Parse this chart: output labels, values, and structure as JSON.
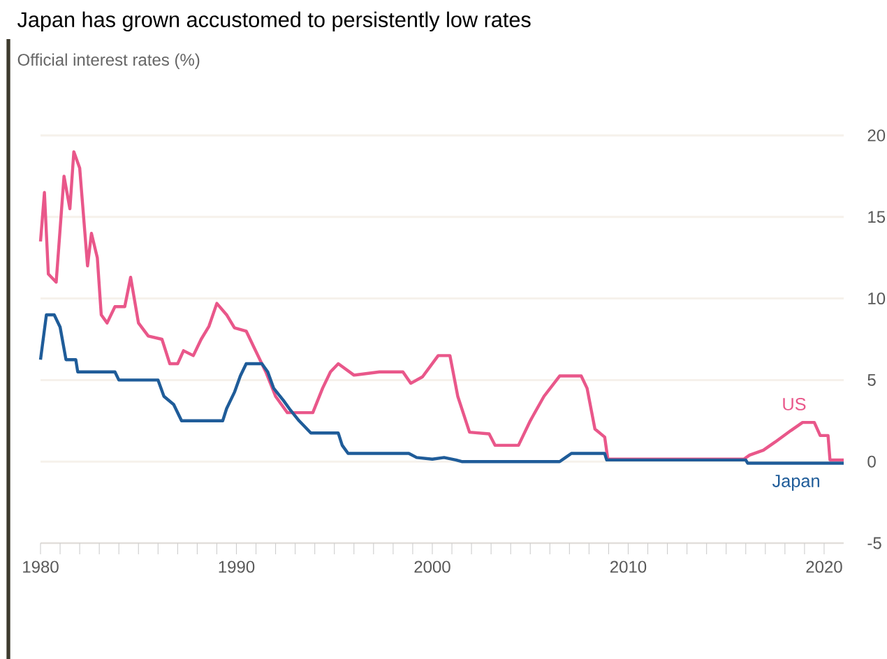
{
  "chart_data": {
    "type": "step",
    "title": "Japan has grown accustomed to persistently low rates",
    "subtitle": "Official interest rates (%)",
    "xlim": [
      1980,
      2021
    ],
    "ylim": [
      -5,
      20
    ],
    "xticks": [
      {
        "value": 1980,
        "label": "1980"
      },
      {
        "value": 1981,
        "label": null
      },
      {
        "value": 1982,
        "label": null
      },
      {
        "value": 1983,
        "label": null
      },
      {
        "value": 1984,
        "label": null
      },
      {
        "value": 1985,
        "label": null
      },
      {
        "value": 1986,
        "label": null
      },
      {
        "value": 1987,
        "label": null
      },
      {
        "value": 1988,
        "label": null
      },
      {
        "value": 1989,
        "label": null
      },
      {
        "value": 1990,
        "label": "1990"
      },
      {
        "value": 1991,
        "label": null
      },
      {
        "value": 1992,
        "label": null
      },
      {
        "value": 1993,
        "label": null
      },
      {
        "value": 1994,
        "label": null
      },
      {
        "value": 1995,
        "label": null
      },
      {
        "value": 1996,
        "label": null
      },
      {
        "value": 1997,
        "label": null
      },
      {
        "value": 1998,
        "label": null
      },
      {
        "value": 1999,
        "label": null
      },
      {
        "value": 2000,
        "label": "2000"
      },
      {
        "value": 2001,
        "label": null
      },
      {
        "value": 2002,
        "label": null
      },
      {
        "value": 2003,
        "label": null
      },
      {
        "value": 2004,
        "label": null
      },
      {
        "value": 2005,
        "label": null
      },
      {
        "value": 2006,
        "label": null
      },
      {
        "value": 2007,
        "label": null
      },
      {
        "value": 2008,
        "label": null
      },
      {
        "value": 2009,
        "label": null
      },
      {
        "value": 2010,
        "label": "2010"
      },
      {
        "value": 2011,
        "label": null
      },
      {
        "value": 2012,
        "label": null
      },
      {
        "value": 2013,
        "label": null
      },
      {
        "value": 2014,
        "label": null
      },
      {
        "value": 2015,
        "label": null
      },
      {
        "value": 2016,
        "label": null
      },
      {
        "value": 2017,
        "label": null
      },
      {
        "value": 2018,
        "label": null
      },
      {
        "value": 2019,
        "label": null
      },
      {
        "value": 2020,
        "label": "2020"
      }
    ],
    "yticks": [
      -5,
      0,
      5,
      10,
      15,
      20
    ],
    "grid": "y",
    "marker": "none",
    "line_style": "solid",
    "series": [
      {
        "name": "US",
        "color": "#e9578a",
        "x": [
          1980.0,
          1980.2,
          1980.4,
          1980.8,
          1981.2,
          1981.5,
          1981.7,
          1982.0,
          1982.4,
          1982.6,
          1982.9,
          1983.1,
          1983.4,
          1983.8,
          1984.3,
          1984.6,
          1985.0,
          1985.5,
          1986.2,
          1986.6,
          1987.0,
          1987.3,
          1987.8,
          1988.2,
          1988.6,
          1989.0,
          1989.5,
          1989.9,
          1990.5,
          1990.9,
          1991.5,
          1992.0,
          1992.6,
          1993.9,
          1994.4,
          1994.8,
          1995.2,
          1996.0,
          1997.3,
          1998.5,
          1998.9,
          1999.5,
          2000.3,
          2000.9,
          2001.3,
          2001.9,
          2002.9,
          2003.2,
          2004.4,
          2005.0,
          2005.7,
          2006.5,
          2007.6,
          2007.9,
          2008.3,
          2008.8,
          2008.96,
          2015.9,
          2016.2,
          2016.9,
          2017.5,
          2018.3,
          2018.9,
          2019.5,
          2019.8,
          2020.2,
          2020.3,
          2021.0
        ],
        "values": [
          13.5,
          16.5,
          11.5,
          11,
          17.5,
          15.5,
          19,
          18,
          12,
          14,
          12.5,
          9,
          8.5,
          9.5,
          9.5,
          11.3,
          8.5,
          7.7,
          7.5,
          6,
          6,
          6.8,
          6.5,
          7.5,
          8.3,
          9.7,
          9,
          8.2,
          8,
          7,
          5.5,
          4,
          3,
          3,
          4.5,
          5.5,
          6,
          5.3,
          5.5,
          5.5,
          4.8,
          5.2,
          6.5,
          6.5,
          4,
          1.8,
          1.7,
          1,
          1,
          2.5,
          4,
          5.25,
          5.25,
          4.5,
          2,
          1.5,
          0.15,
          0.15,
          0.4,
          0.7,
          1.2,
          1.9,
          2.4,
          2.4,
          1.6,
          1.6,
          0.1,
          0.1
        ]
      },
      {
        "name": "Japan",
        "color": "#1f5c99",
        "x": [
          1980.0,
          1980.3,
          1980.7,
          1981.0,
          1981.3,
          1981.8,
          1981.9,
          1983.8,
          1984.0,
          1986.0,
          1986.3,
          1986.8,
          1987.2,
          1989.3,
          1989.5,
          1989.9,
          1990.2,
          1990.5,
          1991.3,
          1991.6,
          1991.9,
          1992.4,
          1992.7,
          1993.2,
          1993.8,
          1995.2,
          1995.4,
          1995.7,
          1998.8,
          1999.2,
          2000.0,
          2000.6,
          2001.2,
          2001.5,
          2006.5,
          2006.8,
          2007.1,
          2008.8,
          2008.9,
          2016.0,
          2016.1,
          2021.0
        ],
        "values": [
          6.25,
          9,
          9,
          8.25,
          6.25,
          6.25,
          5.5,
          5.5,
          5,
          5,
          4,
          3.5,
          2.5,
          2.5,
          3.25,
          4.25,
          5.25,
          6,
          6,
          5.5,
          4.5,
          3.75,
          3.25,
          2.5,
          1.75,
          1.75,
          1,
          0.5,
          0.5,
          0.25,
          0.15,
          0.25,
          0.1,
          0,
          0,
          0.25,
          0.5,
          0.5,
          0.1,
          0.1,
          -0.1,
          -0.1
        ]
      }
    ]
  }
}
